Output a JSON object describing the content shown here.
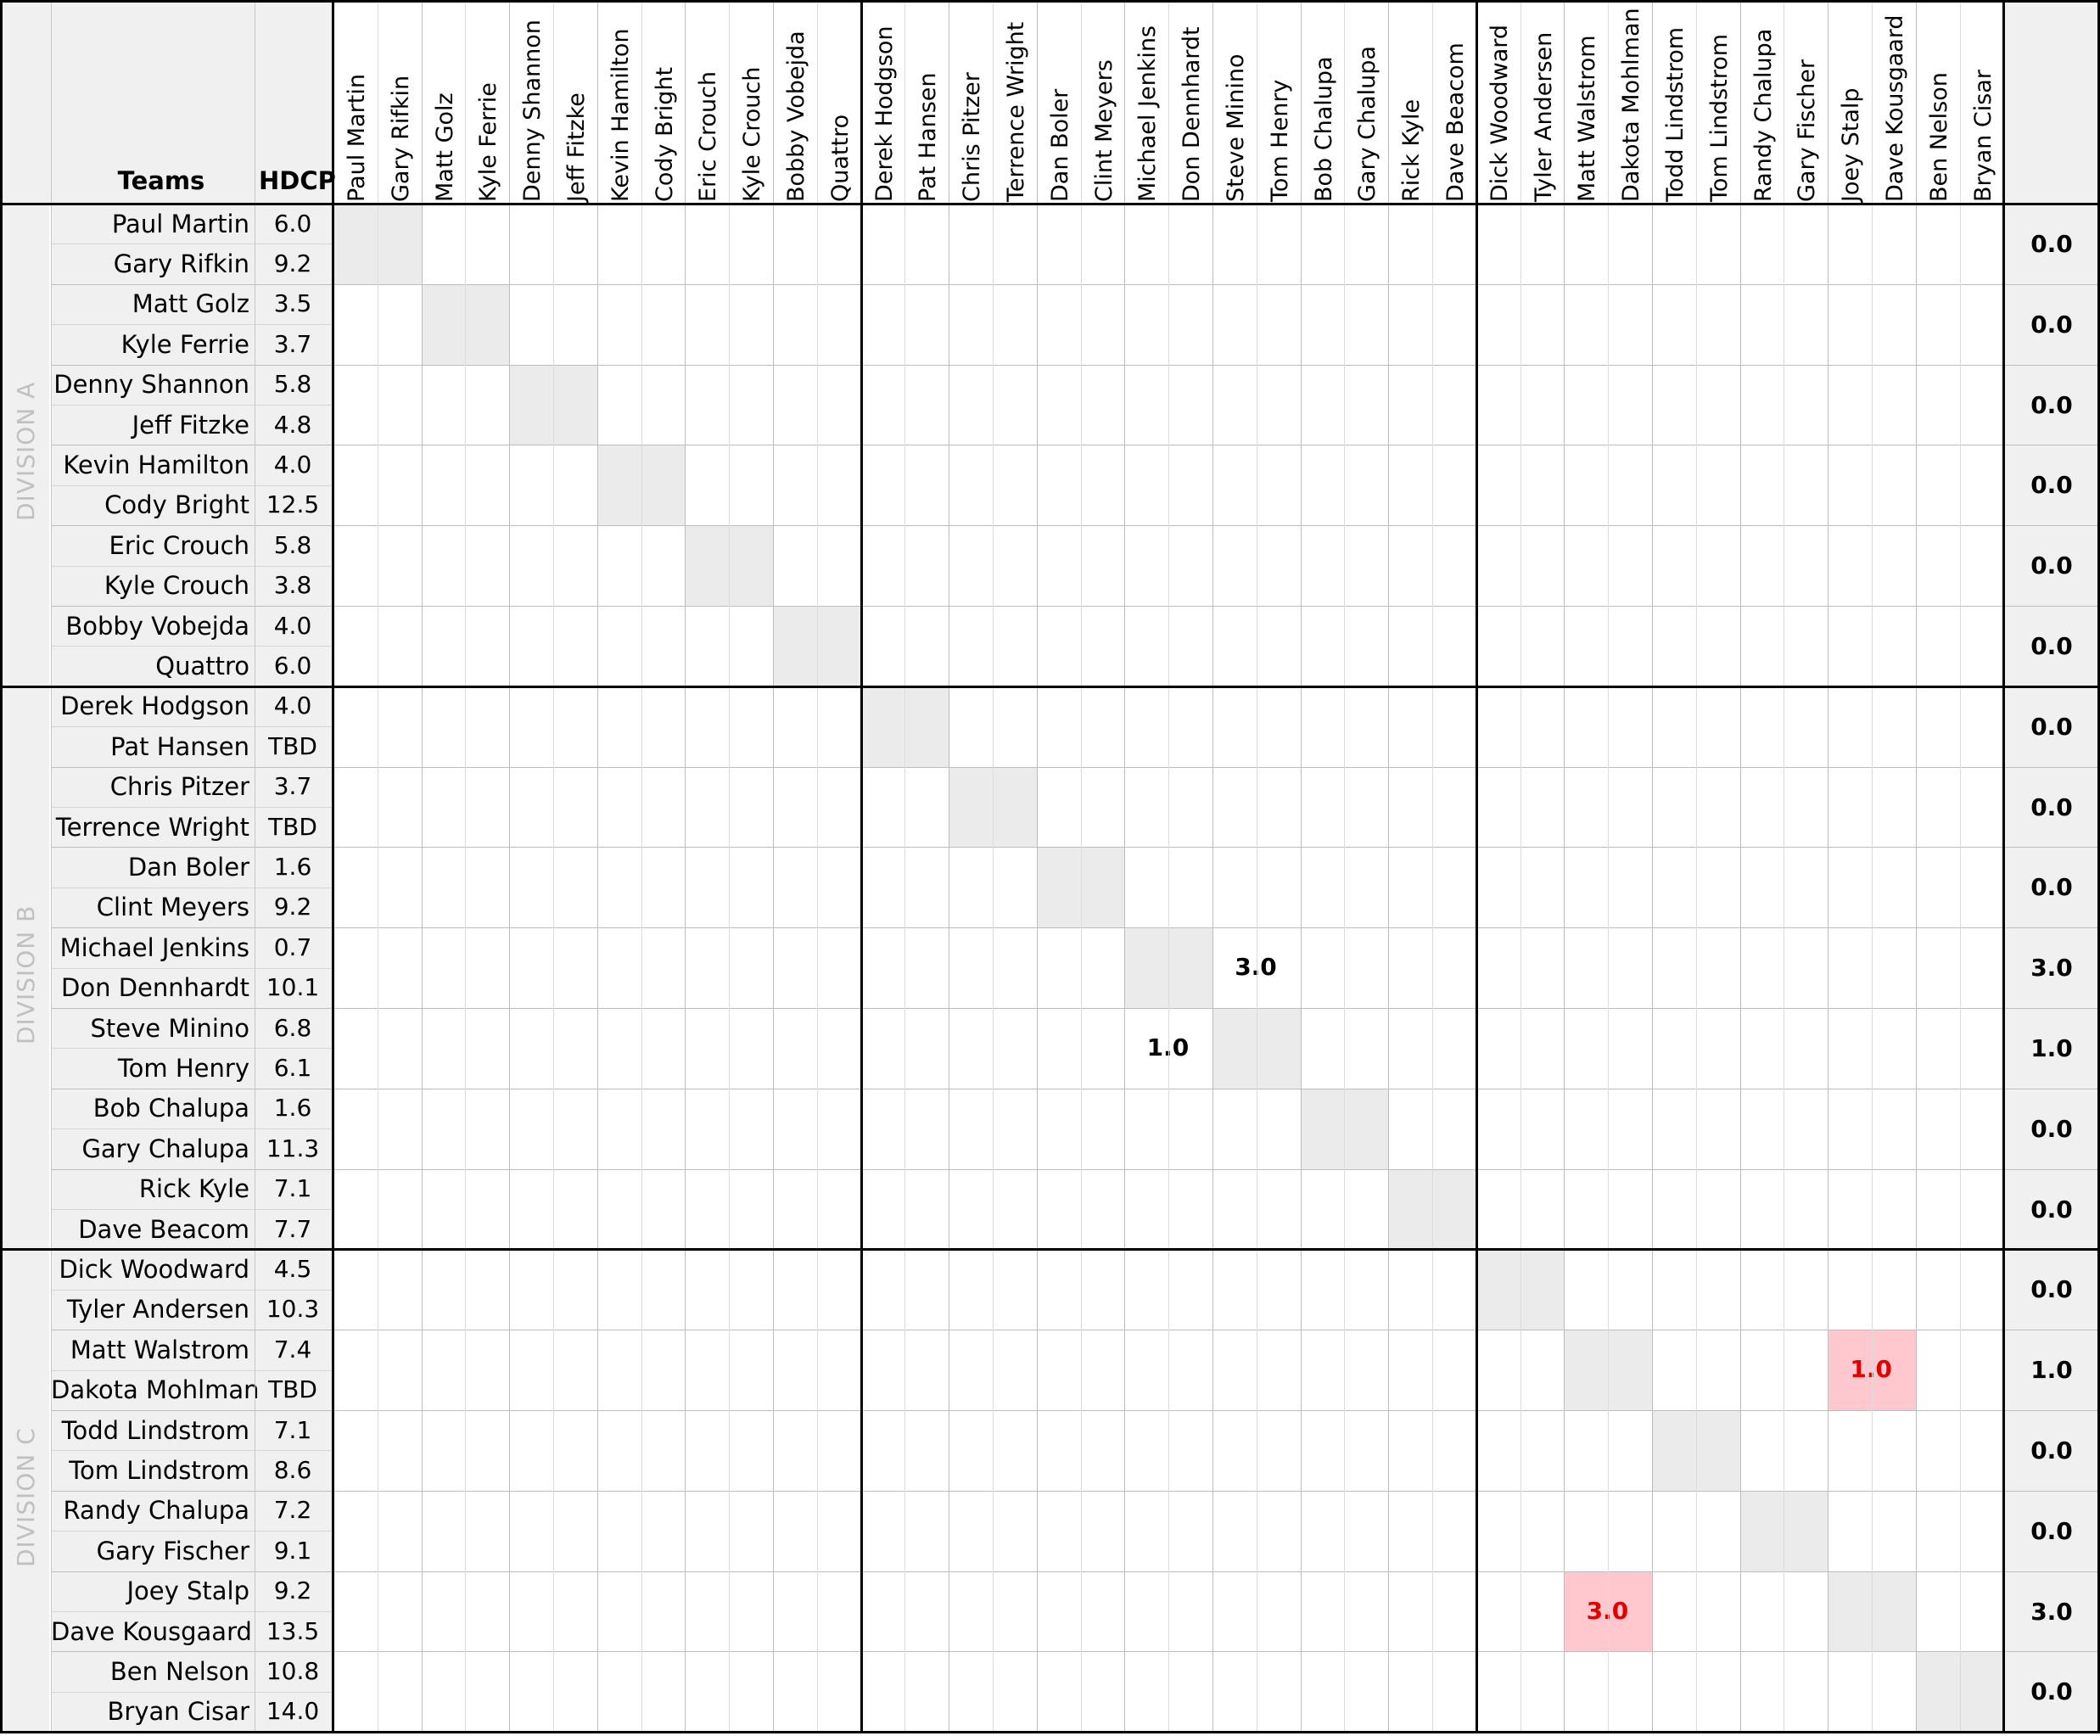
{
  "header": {
    "teams": "Teams",
    "hdcp": "HDCP"
  },
  "columns": [
    "Paul Martin",
    "Gary Rifkin",
    "Matt Golz",
    "Kyle Ferrie",
    "Denny Shannon",
    "Jeff Fitzke",
    "Kevin Hamilton",
    "Cody Bright",
    "Eric Crouch",
    "Kyle Crouch",
    "Bobby Vobejda",
    "Quattro",
    "Derek Hodgson",
    "Pat Hansen",
    "Chris Pitzer",
    "Terrence Wright",
    "Dan Boler",
    "Clint Meyers",
    "Michael Jenkins",
    "Don Dennhardt",
    "Steve Minino",
    "Tom Henry",
    "Bob Chalupa",
    "Gary Chalupa",
    "Rick Kyle",
    "Dave Beacom",
    "Dick Woodward",
    "Tyler Andersen",
    "Matt Walstrom",
    "Dakota Mohlman",
    "Todd Lindstrom",
    "Tom Lindstrom",
    "Randy Chalupa",
    "Gary Fischer",
    "Joey Stalp",
    "Dave Kousgaard",
    "Ben Nelson",
    "Bryan Cisar"
  ],
  "players": [
    {
      "name": "Paul Martin",
      "hdcp": "6.0"
    },
    {
      "name": "Gary Rifkin",
      "hdcp": "9.2"
    },
    {
      "name": "Matt Golz",
      "hdcp": "3.5"
    },
    {
      "name": "Kyle Ferrie",
      "hdcp": "3.7"
    },
    {
      "name": "Denny Shannon",
      "hdcp": "5.8"
    },
    {
      "name": "Jeff Fitzke",
      "hdcp": "4.8"
    },
    {
      "name": "Kevin Hamilton",
      "hdcp": "4.0"
    },
    {
      "name": "Cody Bright",
      "hdcp": "12.5"
    },
    {
      "name": "Eric Crouch",
      "hdcp": "5.8"
    },
    {
      "name": "Kyle Crouch",
      "hdcp": "3.8"
    },
    {
      "name": "Bobby Vobejda",
      "hdcp": "4.0"
    },
    {
      "name": "Quattro",
      "hdcp": "6.0"
    },
    {
      "name": "Derek Hodgson",
      "hdcp": "4.0"
    },
    {
      "name": "Pat Hansen",
      "hdcp": "TBD"
    },
    {
      "name": "Chris Pitzer",
      "hdcp": "3.7"
    },
    {
      "name": "Terrence Wright",
      "hdcp": "TBD"
    },
    {
      "name": "Dan Boler",
      "hdcp": "1.6"
    },
    {
      "name": "Clint Meyers",
      "hdcp": "9.2"
    },
    {
      "name": "Michael Jenkins",
      "hdcp": "0.7"
    },
    {
      "name": "Don Dennhardt",
      "hdcp": "10.1"
    },
    {
      "name": "Steve Minino",
      "hdcp": "6.8"
    },
    {
      "name": "Tom Henry",
      "hdcp": "6.1"
    },
    {
      "name": "Bob Chalupa",
      "hdcp": "1.6"
    },
    {
      "name": "Gary Chalupa",
      "hdcp": "11.3"
    },
    {
      "name": "Rick Kyle",
      "hdcp": "7.1"
    },
    {
      "name": "Dave Beacom",
      "hdcp": "7.7"
    },
    {
      "name": "Dick Woodward",
      "hdcp": "4.5"
    },
    {
      "name": "Tyler Andersen",
      "hdcp": "10.3"
    },
    {
      "name": "Matt Walstrom",
      "hdcp": "7.4"
    },
    {
      "name": "Dakota Mohlman",
      "hdcp": "TBD"
    },
    {
      "name": "Todd Lindstrom",
      "hdcp": "7.1"
    },
    {
      "name": "Tom Lindstrom",
      "hdcp": "8.6"
    },
    {
      "name": "Randy Chalupa",
      "hdcp": "7.2"
    },
    {
      "name": "Gary Fischer",
      "hdcp": "9.1"
    },
    {
      "name": "Joey Stalp",
      "hdcp": "9.2"
    },
    {
      "name": "Dave Kousgaard",
      "hdcp": "13.5"
    },
    {
      "name": "Ben Nelson",
      "hdcp": "10.8"
    },
    {
      "name": "Bryan Cisar",
      "hdcp": "14.0"
    }
  ],
  "divisions": [
    "DIVISION A",
    "DIVISION B",
    "DIVISION C"
  ],
  "totals": [
    "0.0",
    "0.0",
    "0.0",
    "0.0",
    "0.0",
    "0.0",
    "0.0",
    "0.0",
    "0.0",
    "3.0",
    "1.0",
    "0.0",
    "0.0",
    "0.0",
    "1.0",
    "0.0",
    "0.0",
    "3.0",
    "0.0"
  ],
  "scores": [
    {
      "team": 9,
      "opponent": 10,
      "value": "3.0",
      "flag": "normal"
    },
    {
      "team": 10,
      "opponent": 9,
      "value": "1.0",
      "flag": "normal"
    },
    {
      "team": 14,
      "opponent": 17,
      "value": "1.0",
      "flag": "red"
    },
    {
      "team": 17,
      "opponent": 14,
      "value": "3.0",
      "flag": "red"
    }
  ],
  "colors": {
    "highlight": "#ebebeb",
    "pink": "#ffc7ce",
    "red_text": "#e00000",
    "side_bg": "#f0f0f0",
    "division_text": "#c0c0c0"
  }
}
